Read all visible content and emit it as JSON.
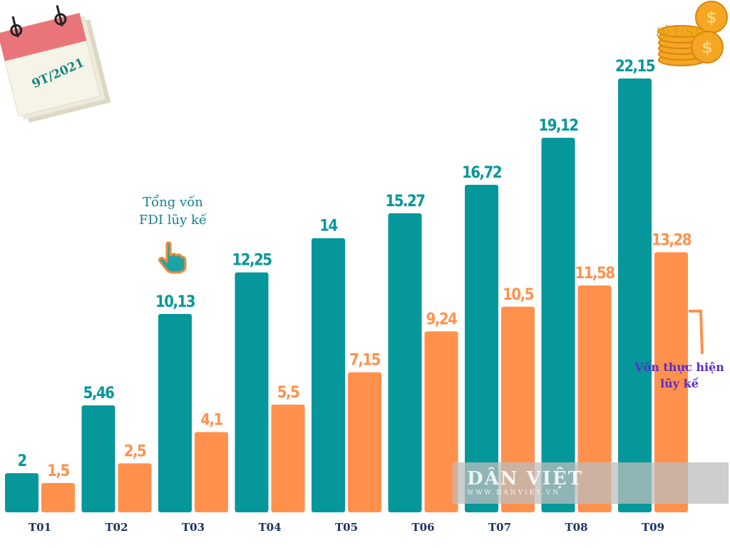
{
  "header": {
    "calendar_label": "9T/2021",
    "unit_label": "tỷ USD"
  },
  "annotations": {
    "fdi_callout_line1": "Tổng vốn",
    "fdi_callout_line2": "FDI lũy kế",
    "realized_callout_line1": "Vốn thực hiện",
    "realized_callout_line2": "lũy kế"
  },
  "watermark": {
    "brand": "DÂN VIỆT",
    "url": "WWW.DANVIET.VN"
  },
  "chart_data": {
    "type": "bar",
    "categories": [
      "T01",
      "T02",
      "T03",
      "T04",
      "T05",
      "T06",
      "T07",
      "T08",
      "T09"
    ],
    "series": [
      {
        "values": [
          2,
          5.46,
          10.13,
          12.25,
          14,
          15.27,
          16.72,
          19.12,
          22.15
        ],
        "labels": [
          "2",
          "5,46",
          "10,13",
          "12,25",
          "14",
          "15.27",
          "16,72",
          "19,12",
          "22,15"
        ],
        "color": "#05979a"
      },
      {
        "values": [
          1.5,
          2.5,
          4.1,
          5.5,
          7.15,
          9.24,
          10.5,
          11.58,
          13.28
        ],
        "labels": [
          "1,5",
          "2,5",
          "4,1",
          "5,5",
          "7,15",
          "9,24",
          "10,5",
          "11,58",
          "13,28"
        ],
        "color": "#ff914d"
      }
    ],
    "ylim": [
      0,
      22.15
    ],
    "grid": false,
    "legend": "none"
  }
}
